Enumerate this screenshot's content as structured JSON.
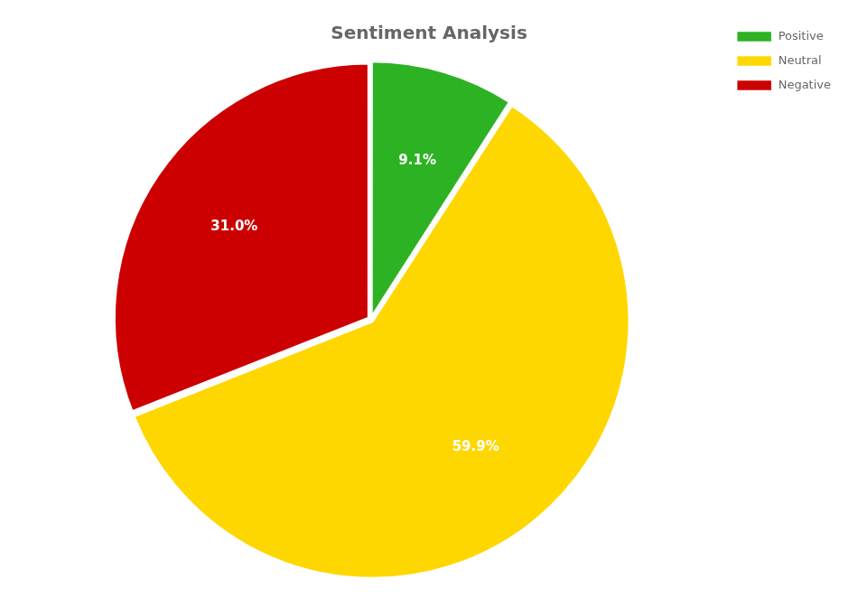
{
  "chart_data": {
    "type": "pie",
    "title": "Sentiment Analysis",
    "categories": [
      "Positive",
      "Neutral",
      "Negative"
    ],
    "values": [
      9.1,
      59.9,
      31.0
    ],
    "value_labels": [
      "9.1%",
      "59.9%",
      "31.0%"
    ],
    "colors": [
      "#2DB224",
      "#FFD700",
      "#CC0000"
    ],
    "data_labels": true,
    "legend": "upper right"
  }
}
